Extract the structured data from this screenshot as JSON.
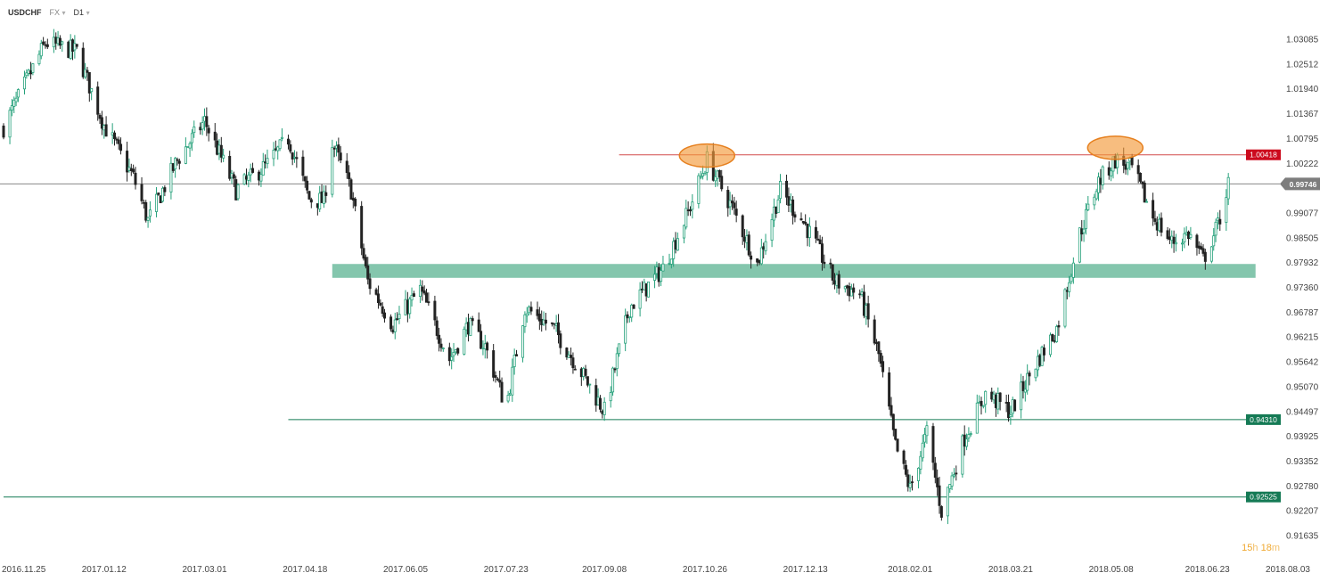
{
  "header": {
    "symbol": "USDCHF",
    "market": "FX",
    "timeframe": "D1"
  },
  "timer": {
    "hours": "15",
    "h_unit": "h",
    "minutes": "18",
    "m_unit": "m"
  },
  "colors": {
    "bull": "#26a17b",
    "bear": "#222222",
    "resistance_line": "#d24b4b",
    "resistance_tag": "#cc0a1d",
    "support_tag": "#157a55",
    "support_line": "#157a55",
    "zone": "#6ebc9f",
    "highlight": "#f39a3a",
    "current_price_line": "#888888",
    "current_price_tag": "#7d7d7d"
  },
  "chart_data": {
    "type": "candlestick",
    "symbol": "USDCHF",
    "timeframe": "D1",
    "x_range": [
      "2016-11-25",
      "2018-08-03"
    ],
    "x_tick_labels": [
      "2016.11.25",
      "2017.01.12",
      "2017.03.01",
      "2017.04.18",
      "2017.06.05",
      "2017.07.23",
      "2017.09.08",
      "2017.10.26",
      "2017.12.13",
      "2018.02.01",
      "2018.03.21",
      "2018.05.08",
      "2018.06.23",
      "2018.08.03"
    ],
    "y_tick_labels": [
      "1.03085",
      "1.02512",
      "1.01940",
      "1.01367",
      "1.00795",
      "1.00222",
      "0.99077",
      "0.98505",
      "0.97932",
      "0.97360",
      "0.96787",
      "0.96215",
      "0.95642",
      "0.95070",
      "0.94497",
      "0.93925",
      "0.93352",
      "0.92780",
      "0.92207",
      "0.91635"
    ],
    "ylim": [
      0.91635,
      1.03085
    ],
    "current_price": "0.99746",
    "horizontal_levels": [
      {
        "label": "1.00418",
        "value": 1.00418,
        "kind": "resistance",
        "from": "2017.09.15"
      },
      {
        "label": "0.94310",
        "value": 0.9431,
        "kind": "support",
        "from": "2017.04.10"
      },
      {
        "label": "0.92525",
        "value": 0.92525,
        "kind": "support",
        "from": "2016.11.25"
      }
    ],
    "zones": [
      {
        "low": 0.9758,
        "high": 0.979,
        "from": "2017.05.01",
        "to": "2018.07.16"
      }
    ],
    "highlights": [
      {
        "date": "2017.10.27",
        "price": 1.004
      },
      {
        "date": "2018.05.10",
        "price": 1.0058
      }
    ],
    "closes": [
      {
        "date": "2016.11.25",
        "value": 1.0105
      },
      {
        "date": "2016.12.15",
        "value": 1.03
      },
      {
        "date": "2016.12.30",
        "value": 1.028
      },
      {
        "date": "2017.01.12",
        "value": 1.011
      },
      {
        "date": "2017.01.26",
        "value": 0.999
      },
      {
        "date": "2017.02.02",
        "value": 0.989
      },
      {
        "date": "2017.02.16",
        "value": 1.003
      },
      {
        "date": "2017.03.01",
        "value": 1.012
      },
      {
        "date": "2017.03.16",
        "value": 0.996
      },
      {
        "date": "2017.03.31",
        "value": 1.002
      },
      {
        "date": "2017.04.10",
        "value": 1.008
      },
      {
        "date": "2017.04.20",
        "value": 0.994
      },
      {
        "date": "2017.04.27",
        "value": 0.9935
      },
      {
        "date": "2017.05.01",
        "value": 1.007
      },
      {
        "date": "2017.05.10",
        "value": 0.996
      },
      {
        "date": "2017.05.18",
        "value": 0.975
      },
      {
        "date": "2017.05.30",
        "value": 0.965
      },
      {
        "date": "2017.06.12",
        "value": 0.973
      },
      {
        "date": "2017.06.26",
        "value": 0.957
      },
      {
        "date": "2017.07.05",
        "value": 0.965
      },
      {
        "date": "2017.07.13",
        "value": 0.96
      },
      {
        "date": "2017.07.23",
        "value": 0.946
      },
      {
        "date": "2017.08.01",
        "value": 0.969
      },
      {
        "date": "2017.08.15",
        "value": 0.964
      },
      {
        "date": "2017.08.28",
        "value": 0.954
      },
      {
        "date": "2017.09.08",
        "value": 0.945
      },
      {
        "date": "2017.09.20",
        "value": 0.969
      },
      {
        "date": "2017.10.06",
        "value": 0.978
      },
      {
        "date": "2017.10.18",
        "value": 0.991
      },
      {
        "date": "2017.10.27",
        "value": 1.003
      },
      {
        "date": "2017.11.08",
        "value": 0.992
      },
      {
        "date": "2017.11.20",
        "value": 0.979
      },
      {
        "date": "2017.12.01",
        "value": 0.996
      },
      {
        "date": "2017.12.13",
        "value": 0.988
      },
      {
        "date": "2017.12.27",
        "value": 0.975
      },
      {
        "date": "2018.01.08",
        "value": 0.972
      },
      {
        "date": "2018.01.17",
        "value": 0.958
      },
      {
        "date": "2018.01.25",
        "value": 0.937
      },
      {
        "date": "2018.02.01",
        "value": 0.927
      },
      {
        "date": "2018.02.09",
        "value": 0.94
      },
      {
        "date": "2018.02.16",
        "value": 0.922
      },
      {
        "date": "2018.02.27",
        "value": 0.939
      },
      {
        "date": "2018.03.09",
        "value": 0.949
      },
      {
        "date": "2018.03.21",
        "value": 0.945
      },
      {
        "date": "2018.04.02",
        "value": 0.956
      },
      {
        "date": "2018.04.12",
        "value": 0.964
      },
      {
        "date": "2018.04.23",
        "value": 0.986
      },
      {
        "date": "2018.05.02",
        "value": 0.998
      },
      {
        "date": "2018.05.10",
        "value": 1.003
      },
      {
        "date": "2018.05.18",
        "value": 1.001
      },
      {
        "date": "2018.05.28",
        "value": 0.99
      },
      {
        "date": "2018.06.06",
        "value": 0.984
      },
      {
        "date": "2018.06.14",
        "value": 0.986
      },
      {
        "date": "2018.06.21",
        "value": 0.98
      },
      {
        "date": "2018.06.28",
        "value": 0.988
      },
      {
        "date": "2018.07.03",
        "value": 0.9975
      }
    ]
  }
}
